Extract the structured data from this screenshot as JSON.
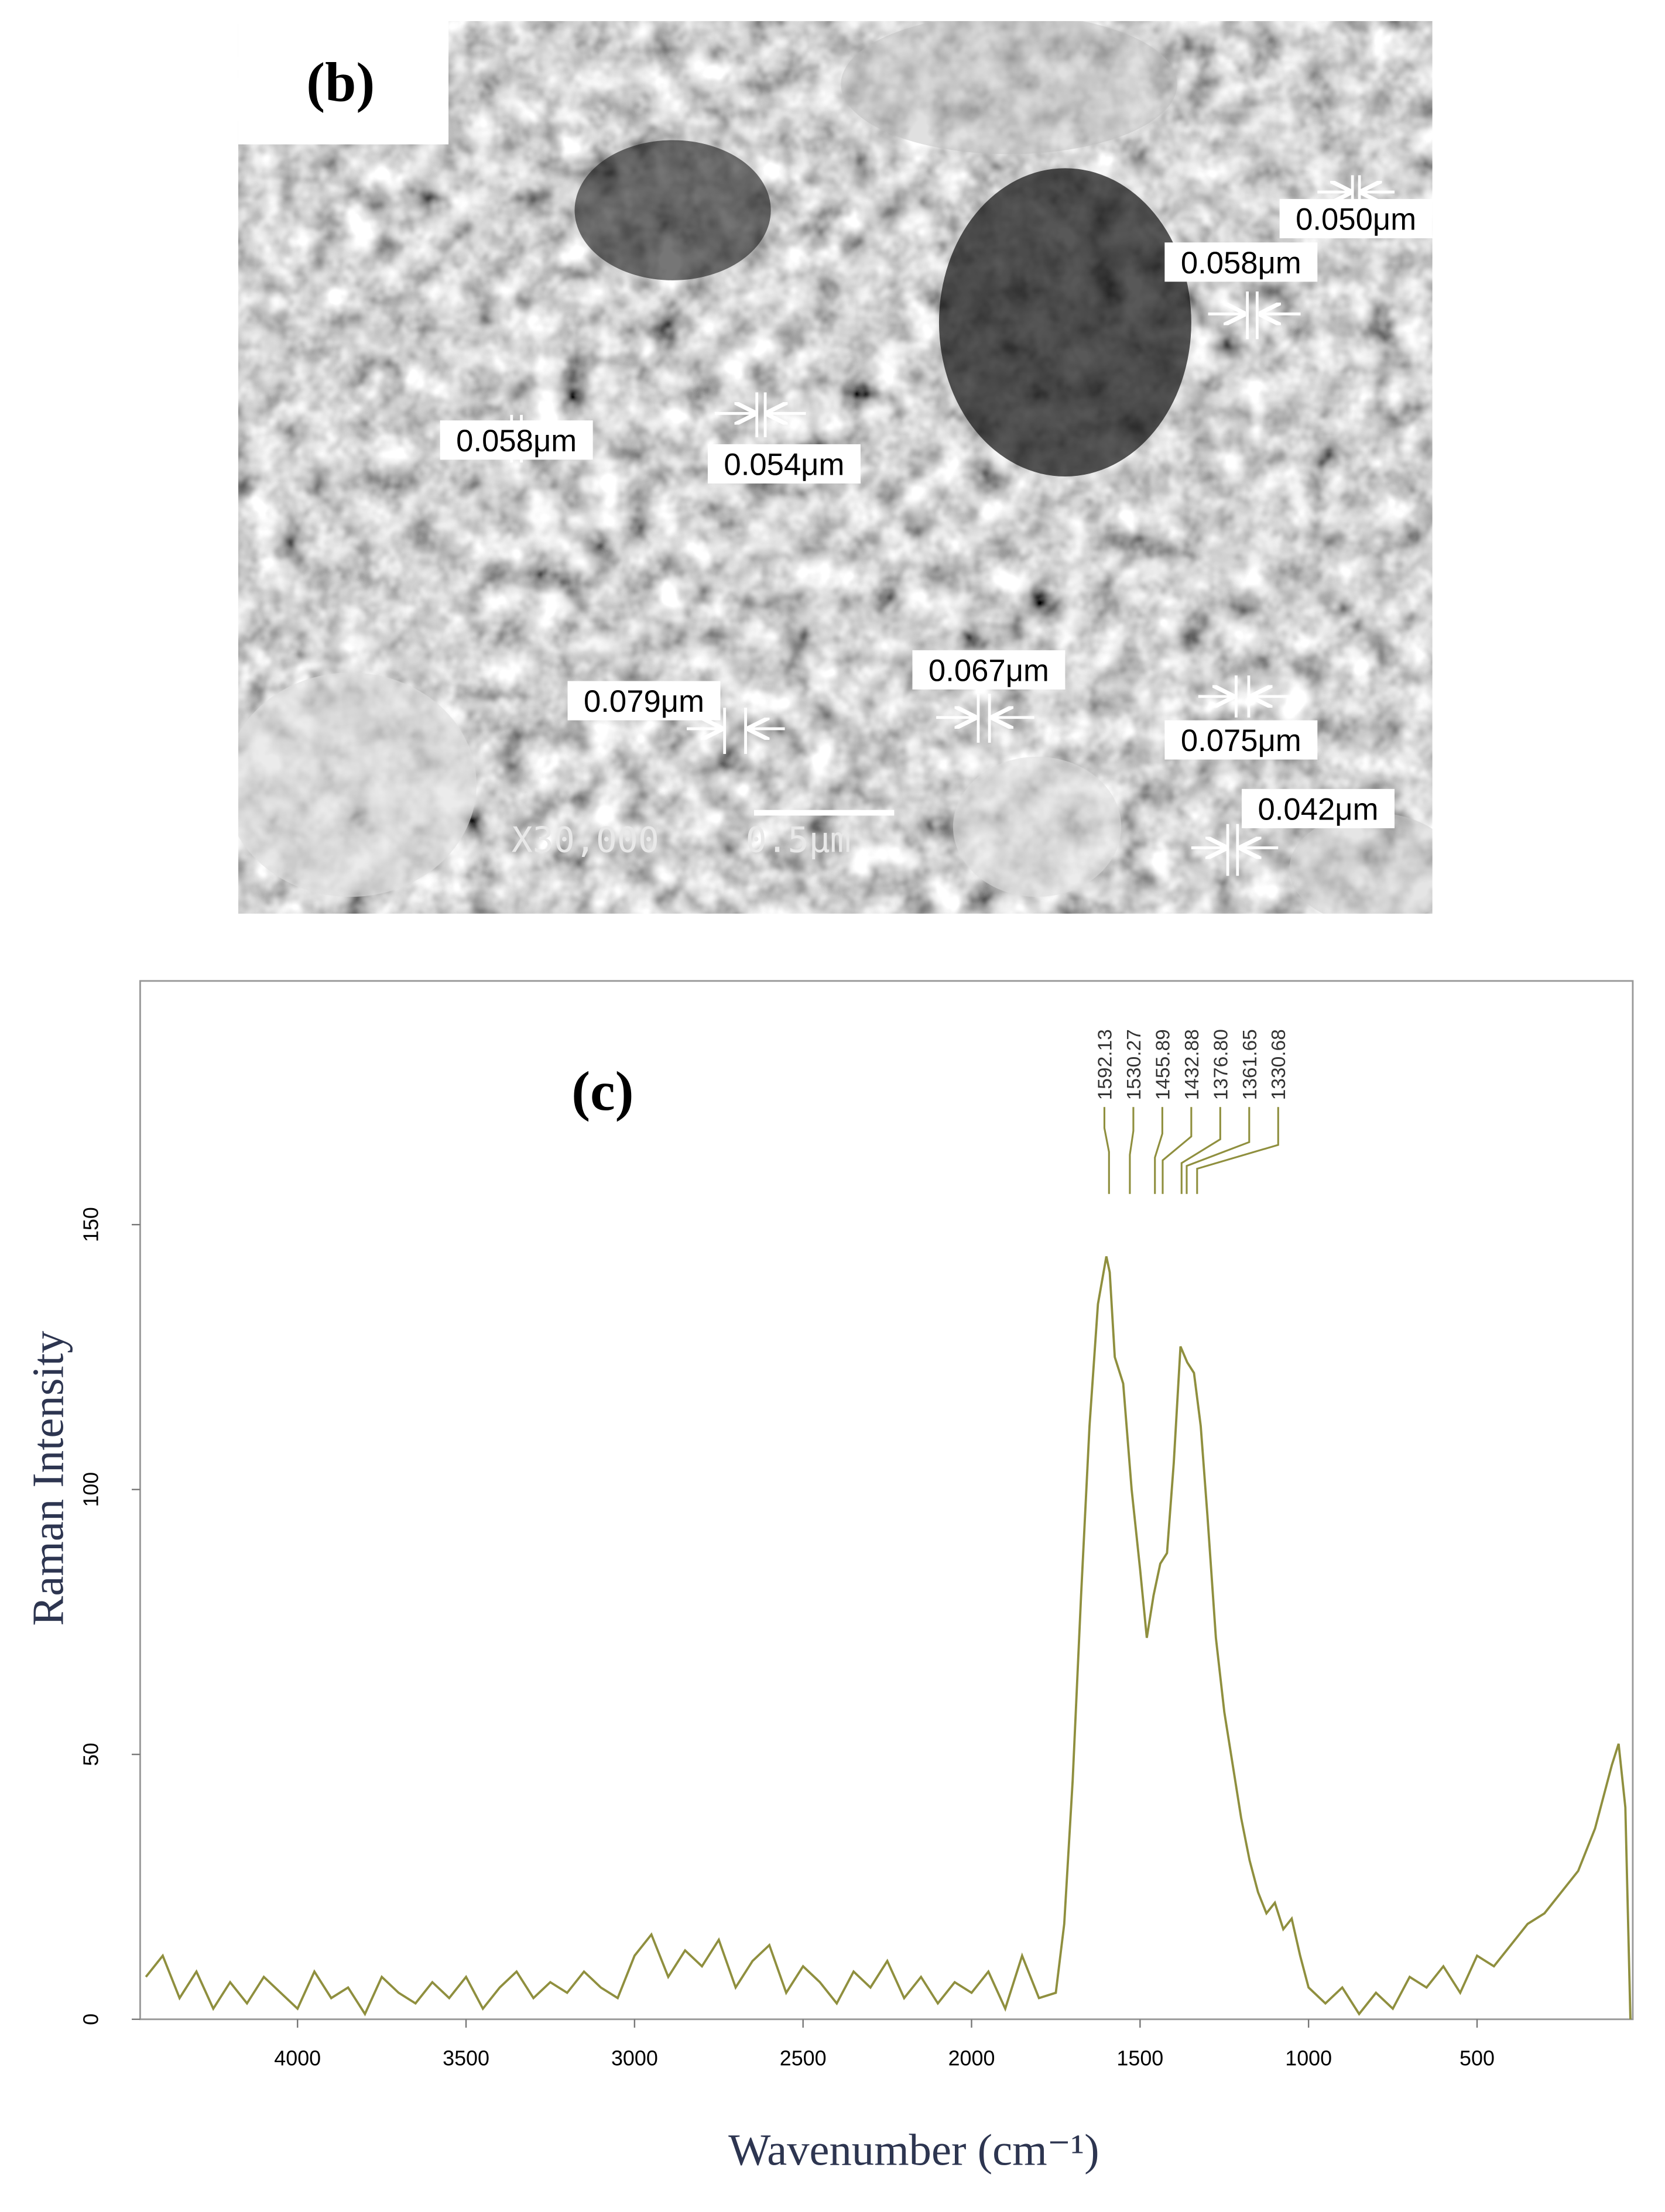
{
  "sem": {
    "label": "(b)",
    "measurements": [
      "0.050μm",
      "0.058μm",
      "0.058μm",
      "0.054μm",
      "0.079μm",
      "0.067μm",
      "0.075μm",
      "0.042μm"
    ],
    "magnification": "X30,000",
    "scale_bar": "0.5μm"
  },
  "chart_data": {
    "type": "line",
    "panel_label": "(c)",
    "x_label": "Wavenumber (cm⁻¹)",
    "y_label": "Raman Intensity",
    "color": "#8f8f3e",
    "x": [
      4450,
      4400,
      4350,
      4300,
      4250,
      4200,
      4150,
      4100,
      4050,
      4000,
      3950,
      3900,
      3850,
      3800,
      3750,
      3700,
      3650,
      3600,
      3550,
      3500,
      3450,
      3400,
      3350,
      3300,
      3250,
      3200,
      3150,
      3100,
      3050,
      3000,
      2950,
      2900,
      2850,
      2800,
      2750,
      2700,
      2650,
      2600,
      2550,
      2500,
      2450,
      2400,
      2350,
      2300,
      2250,
      2200,
      2150,
      2100,
      2050,
      2000,
      1950,
      1900,
      1850,
      1800,
      1750,
      1725,
      1700,
      1675,
      1650,
      1625,
      1600,
      1590,
      1575,
      1550,
      1525,
      1500,
      1480,
      1460,
      1440,
      1420,
      1400,
      1380,
      1360,
      1340,
      1320,
      1300,
      1275,
      1250,
      1225,
      1200,
      1175,
      1150,
      1125,
      1100,
      1075,
      1050,
      1025,
      1000,
      950,
      900,
      850,
      800,
      750,
      700,
      650,
      600,
      550,
      500,
      450,
      400,
      350,
      300,
      250,
      200,
      150,
      100,
      80,
      60,
      45
    ],
    "values": [
      8,
      12,
      4,
      9,
      2,
      7,
      3,
      8,
      5,
      2,
      9,
      4,
      6,
      1,
      8,
      5,
      3,
      7,
      4,
      8,
      2,
      6,
      9,
      4,
      7,
      5,
      9,
      6,
      4,
      12,
      16,
      8,
      13,
      10,
      15,
      6,
      11,
      14,
      5,
      10,
      7,
      3,
      9,
      6,
      11,
      4,
      8,
      3,
      7,
      5,
      9,
      2,
      12,
      4,
      5,
      18,
      45,
      80,
      112,
      135,
      144,
      141,
      125,
      120,
      100,
      85,
      72,
      80,
      86,
      88,
      105,
      127,
      124,
      122,
      112,
      95,
      72,
      58,
      48,
      38,
      30,
      24,
      20,
      22,
      17,
      19,
      12,
      6,
      3,
      6,
      1,
      5,
      2,
      8,
      6,
      10,
      5,
      12,
      10,
      14,
      18,
      20,
      24,
      28,
      36,
      48,
      52,
      40,
      0
    ],
    "xlim": [
      4467,
      38
    ],
    "ylim": [
      0,
      196
    ],
    "xticks": [
      4000,
      3500,
      3000,
      2500,
      2000,
      1500,
      1000,
      500
    ],
    "yticks": [
      0,
      50,
      100,
      150
    ],
    "peaks": [
      1592.13,
      {
        "value": 1530.27,
        "label": "1530.27"
      },
      1455.89,
      1432.88,
      {
        "value": 1376.8,
        "label": "1376.80"
      },
      1361.65,
      1330.68
    ]
  }
}
